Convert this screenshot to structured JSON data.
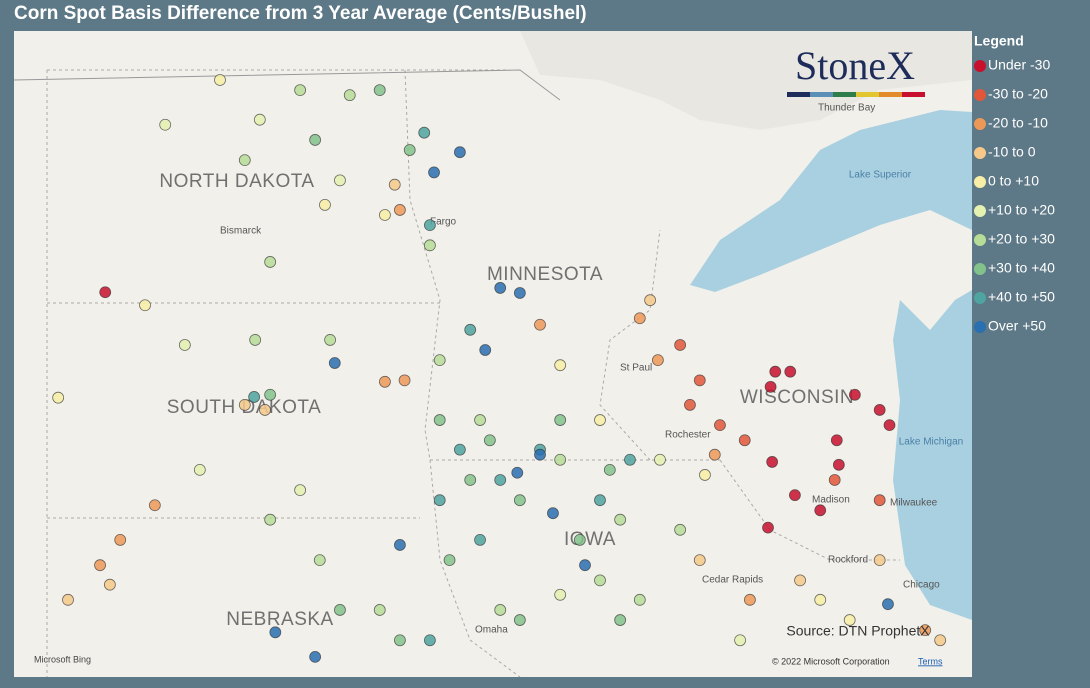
{
  "title": "Corn Spot Basis Difference from 3 Year Average (Cents/Bushel)",
  "legend": {
    "title": "Legend",
    "items": [
      {
        "label": "Under -30",
        "color": "#c8102e"
      },
      {
        "label": "-30 to -20",
        "color": "#e2573a"
      },
      {
        "label": "-20 to -10",
        "color": "#ee9858"
      },
      {
        "label": "-10 to 0",
        "color": "#f6c98a"
      },
      {
        "label": "0 to +10",
        "color": "#f7efa6"
      },
      {
        "label": "+10 to +20",
        "color": "#e4f1b0"
      },
      {
        "label": "+20 to +30",
        "color": "#b7dc98"
      },
      {
        "label": "+30 to +40",
        "color": "#84c28c"
      },
      {
        "label": "+40 to +50",
        "color": "#4fa3a0"
      },
      {
        "label": "Over +50",
        "color": "#2a6fb0"
      }
    ]
  },
  "logo": "StoneX",
  "map": {
    "states": [
      "NORTH DAKOTA",
      "MINNESOTA",
      "SOUTH DAKOTA",
      "WISCONSIN",
      "IOWA",
      "NEBRASKA"
    ],
    "cities": [
      "Bismarck",
      "Fargo",
      "Thunder Bay",
      "St Paul",
      "Rochester",
      "Madison",
      "Milwaukee",
      "Rockford",
      "Chicago",
      "Cedar Rapids",
      "Omaha"
    ],
    "lakes": [
      "Lake Superior",
      "Lake Michigan"
    ]
  },
  "source": "Source: DTN ProphetX",
  "copyright": "© 2022 Microsoft Corporation",
  "terms": "Terms",
  "bing": "Microsoft Bing",
  "points": [
    [
      -103.0,
      46.1,
      0
    ],
    [
      -90.04,
      45.0,
      0
    ],
    [
      -89.75,
      45.0,
      0
    ],
    [
      -90.13,
      44.79,
      0
    ],
    [
      -88.5,
      44.68,
      0
    ],
    [
      -88.02,
      44.47,
      0
    ],
    [
      -87.83,
      44.26,
      0
    ],
    [
      -88.85,
      44.05,
      0
    ],
    [
      -88.81,
      43.71,
      0
    ],
    [
      -89.17,
      43.08,
      0
    ],
    [
      -89.66,
      43.29,
      0
    ],
    [
      -90.18,
      42.84,
      0
    ],
    [
      -90.1,
      43.75,
      0
    ],
    [
      -91.88,
      45.37,
      1
    ],
    [
      -91.5,
      44.88,
      1
    ],
    [
      -91.11,
      44.26,
      1
    ],
    [
      -90.63,
      44.05,
      1
    ],
    [
      -88.02,
      43.22,
      1
    ],
    [
      -88.89,
      43.5,
      1
    ],
    [
      -91.69,
      44.54,
      1
    ],
    [
      -92.66,
      45.74,
      2
    ],
    [
      -92.31,
      45.16,
      2
    ],
    [
      -91.21,
      43.85,
      2
    ],
    [
      -90.53,
      41.84,
      2
    ],
    [
      -97.59,
      44.86,
      2
    ],
    [
      -97.21,
      44.88,
      2
    ],
    [
      -102.04,
      43.15,
      2
    ],
    [
      -102.71,
      42.67,
      2
    ],
    [
      -103.1,
      42.32,
      2
    ],
    [
      -97.3,
      47.24,
      2
    ],
    [
      -87.14,
      41.42,
      2
    ],
    [
      -94.59,
      45.65,
      2
    ],
    [
      -100.3,
      44.54,
      3
    ],
    [
      -99.91,
      44.47,
      3
    ],
    [
      -103.72,
      41.84,
      3
    ],
    [
      -102.91,
      42.05,
      3
    ],
    [
      -88.02,
      42.39,
      3
    ],
    [
      -89.56,
      42.11,
      3
    ],
    [
      -97.4,
      47.59,
      3
    ],
    [
      -92.46,
      45.99,
      3
    ],
    [
      -91.5,
      42.39,
      3
    ],
    [
      -86.85,
      41.28,
      3
    ],
    [
      -100.78,
      49.04,
      4
    ],
    [
      -98.75,
      47.31,
      4
    ],
    [
      -97.59,
      47.17,
      4
    ],
    [
      -94.2,
      45.09,
      4
    ],
    [
      -93.43,
      44.33,
      4
    ],
    [
      -88.6,
      41.56,
      4
    ],
    [
      -89.17,
      41.84,
      4
    ],
    [
      -91.4,
      43.57,
      4
    ],
    [
      -102.23,
      45.92,
      4
    ],
    [
      -103.91,
      44.64,
      4
    ],
    [
      -101.84,
      48.42,
      5
    ],
    [
      -100.01,
      48.49,
      5
    ],
    [
      -98.46,
      47.65,
      5
    ],
    [
      -101.46,
      45.37,
      5
    ],
    [
      -101.17,
      43.64,
      5
    ],
    [
      -99.23,
      43.36,
      5
    ],
    [
      -92.27,
      43.78,
      5
    ],
    [
      -90.72,
      41.28,
      5
    ],
    [
      -94.2,
      41.91,
      5
    ],
    [
      -99.23,
      48.9,
      6
    ],
    [
      -100.3,
      47.93,
      6
    ],
    [
      -99.81,
      46.52,
      6
    ],
    [
      -98.65,
      45.44,
      6
    ],
    [
      -100.1,
      45.44,
      6
    ],
    [
      -96.53,
      45.16,
      6
    ],
    [
      -95.75,
      44.33,
      6
    ],
    [
      -94.2,
      43.78,
      6
    ],
    [
      -93.04,
      42.95,
      6
    ],
    [
      -95.36,
      41.7,
      6
    ],
    [
      -97.69,
      41.7,
      6
    ],
    [
      -98.85,
      42.39,
      6
    ],
    [
      -99.81,
      42.95,
      6
    ],
    [
      -92.66,
      41.84,
      6
    ],
    [
      -93.43,
      42.11,
      6
    ],
    [
      -91.88,
      42.81,
      6
    ],
    [
      -96.72,
      46.75,
      6
    ],
    [
      -98.27,
      48.83,
      6
    ],
    [
      -97.69,
      48.9,
      7
    ],
    [
      -98.94,
      48.21,
      7
    ],
    [
      -97.11,
      48.07,
      7
    ],
    [
      -99.81,
      44.68,
      7
    ],
    [
      -96.53,
      44.33,
      7
    ],
    [
      -95.94,
      43.5,
      7
    ],
    [
      -94.98,
      43.22,
      7
    ],
    [
      -93.82,
      42.67,
      7
    ],
    [
      -93.24,
      43.64,
      7
    ],
    [
      -94.2,
      44.33,
      7
    ],
    [
      -96.34,
      42.39,
      7
    ],
    [
      -94.98,
      41.56,
      7
    ],
    [
      -97.3,
      41.28,
      7
    ],
    [
      -98.46,
      41.7,
      7
    ],
    [
      -93.04,
      41.56,
      7
    ],
    [
      -95.56,
      44.05,
      7
    ],
    [
      -96.83,
      48.31,
      8
    ],
    [
      -96.72,
      47.03,
      8
    ],
    [
      -95.94,
      45.58,
      8
    ],
    [
      -96.14,
      43.92,
      8
    ],
    [
      -95.36,
      43.5,
      8
    ],
    [
      -94.59,
      43.92,
      8
    ],
    [
      -93.43,
      43.22,
      8
    ],
    [
      -96.53,
      43.22,
      8
    ],
    [
      -95.75,
      42.67,
      8
    ],
    [
      -96.72,
      41.28,
      8
    ],
    [
      -92.85,
      43.78,
      8
    ],
    [
      -100.12,
      44.65,
      8
    ],
    [
      -96.64,
      47.76,
      9
    ],
    [
      -96.14,
      48.04,
      9
    ],
    [
      -95.36,
      46.16,
      9
    ],
    [
      -94.98,
      46.09,
      9
    ],
    [
      -95.65,
      45.3,
      9
    ],
    [
      -94.59,
      43.85,
      9
    ],
    [
      -95.03,
      43.6,
      9
    ],
    [
      -94.34,
      43.04,
      9
    ],
    [
      -93.72,
      42.32,
      9
    ],
    [
      -97.3,
      42.6,
      9
    ],
    [
      -99.71,
      41.39,
      9
    ],
    [
      -98.94,
      41.05,
      9
    ],
    [
      -87.86,
      41.78,
      9
    ],
    [
      -98.56,
      45.12,
      9
    ]
  ]
}
